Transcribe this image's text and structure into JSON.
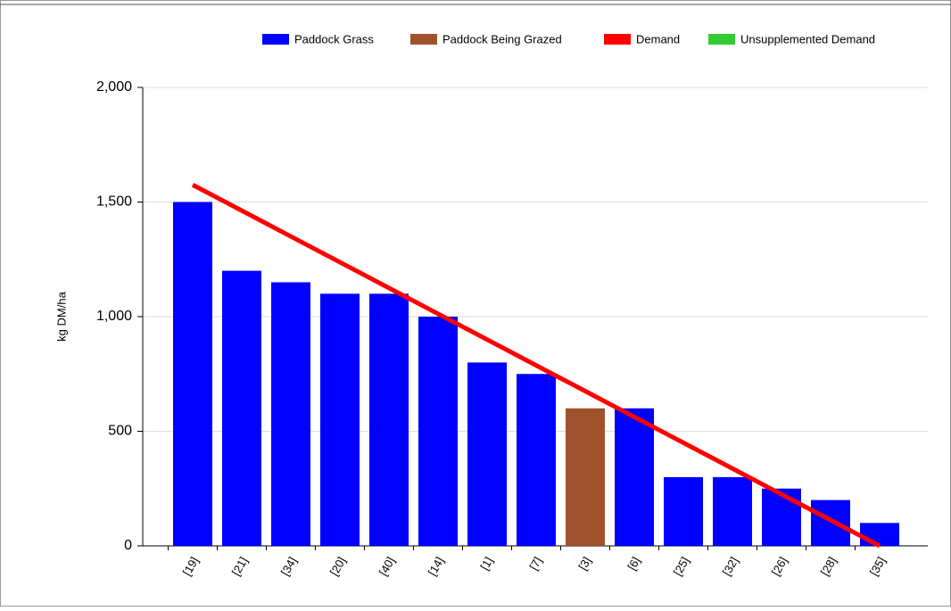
{
  "chart_data": {
    "type": "bar",
    "y_label": "kg DM/ha",
    "categories": [
      "[19]",
      "[21]",
      "[34]",
      "[20]",
      "[40]",
      "[14]",
      "[1]",
      "[7]",
      "[3]",
      "[6]",
      "[25]",
      "[32]",
      "[26]",
      "[28]",
      "[35]"
    ],
    "series": [
      {
        "name": "Paddock Grass",
        "color": "#0000ff",
        "kind": "bar",
        "values": [
          1500,
          1200,
          1150,
          1100,
          1100,
          1000,
          800,
          750,
          null,
          600,
          300,
          300,
          250,
          200,
          100
        ]
      },
      {
        "name": "Paddock Being Grazed",
        "color": "#a0522d",
        "kind": "bar",
        "values": [
          null,
          null,
          null,
          null,
          null,
          null,
          null,
          null,
          600,
          null,
          null,
          null,
          null,
          null,
          null
        ]
      },
      {
        "name": "Demand",
        "color": "#ff0000",
        "kind": "line",
        "values": [
          1575,
          1462.5,
          1350,
          1237.5,
          1125,
          1012.5,
          900,
          787.5,
          675,
          562.5,
          450,
          337.5,
          225,
          112.5,
          0
        ]
      },
      {
        "name": "Unsupplemented Demand",
        "color": "#33cc33",
        "kind": "line",
        "values": [
          null,
          null,
          null,
          null,
          null,
          null,
          null,
          null,
          null,
          null,
          null,
          null,
          null,
          null,
          null
        ]
      }
    ],
    "ylim": [
      0,
      2000
    ],
    "yticks": [
      0,
      500,
      {
        "value": 1000,
        "label": "1,000"
      },
      {
        "value": 1500,
        "label": "1,500"
      },
      {
        "value": 2000,
        "label": "2,000"
      }
    ],
    "grid": true
  }
}
